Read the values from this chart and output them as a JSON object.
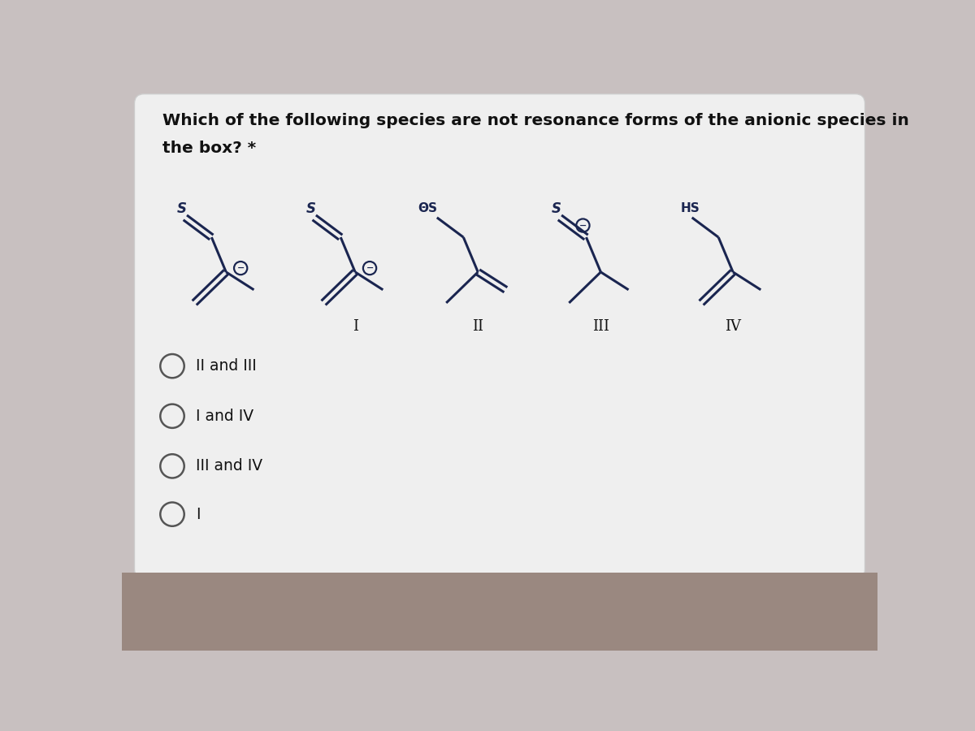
{
  "title_line1": "Which of the following species are not resonance forms of the anionic species in",
  "title_line2": "the box? *",
  "bg_color": "#c8c0c0",
  "panel_color": "#e8e6e6",
  "mol_color": "#1a2550",
  "options": [
    "II and III",
    "I and IV",
    "III and IV",
    "I"
  ],
  "title_fontsize": 14.5,
  "option_fontsize": 13.5
}
